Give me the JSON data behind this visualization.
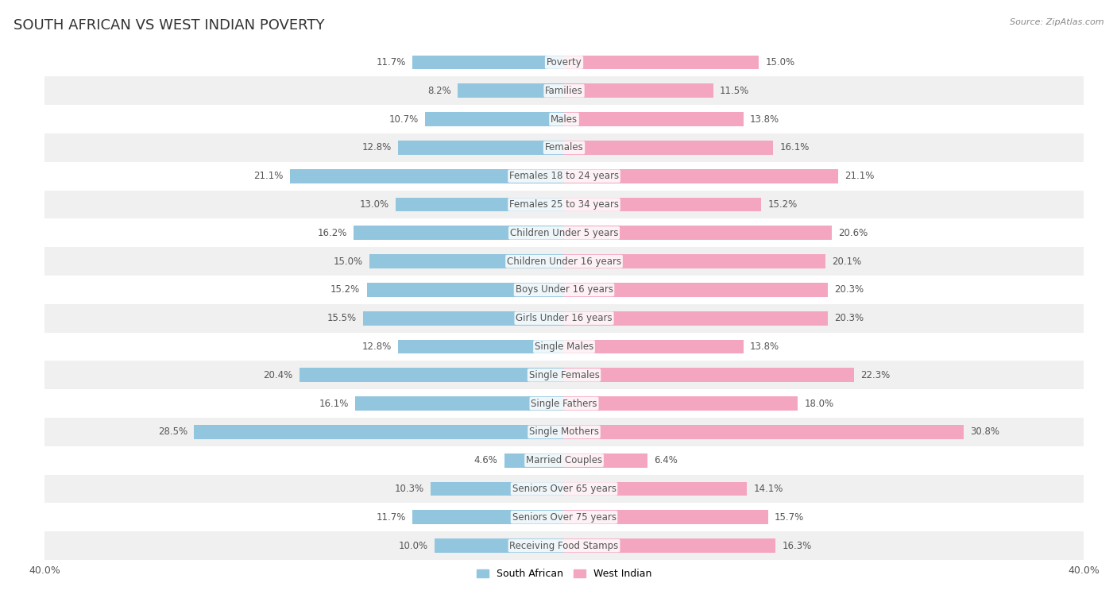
{
  "title": "SOUTH AFRICAN VS WEST INDIAN POVERTY",
  "source": "Source: ZipAtlas.com",
  "categories": [
    "Poverty",
    "Families",
    "Males",
    "Females",
    "Females 18 to 24 years",
    "Females 25 to 34 years",
    "Children Under 5 years",
    "Children Under 16 years",
    "Boys Under 16 years",
    "Girls Under 16 years",
    "Single Males",
    "Single Females",
    "Single Fathers",
    "Single Mothers",
    "Married Couples",
    "Seniors Over 65 years",
    "Seniors Over 75 years",
    "Receiving Food Stamps"
  ],
  "south_african": [
    11.7,
    8.2,
    10.7,
    12.8,
    21.1,
    13.0,
    16.2,
    15.0,
    15.2,
    15.5,
    12.8,
    20.4,
    16.1,
    28.5,
    4.6,
    10.3,
    11.7,
    10.0
  ],
  "west_indian": [
    15.0,
    11.5,
    13.8,
    16.1,
    21.1,
    15.2,
    20.6,
    20.1,
    20.3,
    20.3,
    13.8,
    22.3,
    18.0,
    30.8,
    6.4,
    14.1,
    15.7,
    16.3
  ],
  "sa_color": "#92c5de",
  "wi_color": "#f4a6c0",
  "background_color": "#ffffff",
  "row_colors": [
    "#ffffff",
    "#f0f0f0"
  ],
  "axis_limit": 40.0,
  "bar_height": 0.5,
  "title_fontsize": 13,
  "label_fontsize": 8.5,
  "value_fontsize": 8.5,
  "tick_fontsize": 9,
  "legend_fontsize": 9,
  "label_color": "#555555",
  "value_color": "#555555",
  "single_mothers_sa_text": "#ffffff",
  "single_mothers_wi_text": "#ffffff"
}
